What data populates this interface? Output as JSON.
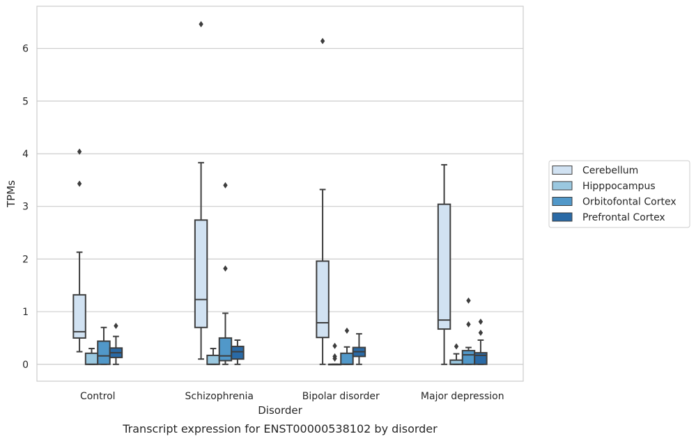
{
  "chart_data": {
    "type": "box",
    "title": "Transcript expression for ENST00000538102 by disorder",
    "xlabel": "Disorder",
    "ylabel": "TPMs",
    "ylim": [
      -0.32,
      6.8
    ],
    "yticks": [
      0,
      1,
      2,
      3,
      4,
      5,
      6
    ],
    "grid": "horizontal",
    "legend_position": "right",
    "categories": [
      "Control",
      "Schizophrenia",
      "Bipolar disorder",
      "Major depression"
    ],
    "series": [
      {
        "name": "Cerebellum",
        "color": "#d1e2f2",
        "boxes": [
          {
            "whislo": 0.24,
            "q1": 0.5,
            "med": 0.62,
            "q3": 1.32,
            "whishi": 2.13,
            "fliers": [
              3.43,
              4.04
            ]
          },
          {
            "whislo": 0.1,
            "q1": 0.7,
            "med": 1.23,
            "q3": 2.74,
            "whishi": 3.83,
            "fliers": [
              6.46
            ]
          },
          {
            "whislo": 0.0,
            "q1": 0.51,
            "med": 0.79,
            "q3": 1.96,
            "whishi": 3.32,
            "fliers": [
              6.14
            ]
          },
          {
            "whislo": 0.0,
            "q1": 0.67,
            "med": 0.84,
            "q3": 3.04,
            "whishi": 3.79,
            "fliers": []
          }
        ]
      },
      {
        "name": "Hipppocampus",
        "color": "#9ac8e0",
        "boxes": [
          {
            "whislo": 0.0,
            "q1": 0.0,
            "med": 0.0,
            "q3": 0.21,
            "whishi": 0.3,
            "fliers": []
          },
          {
            "whislo": 0.0,
            "q1": 0.0,
            "med": 0.0,
            "q3": 0.17,
            "whishi": 0.3,
            "fliers": []
          },
          {
            "whislo": 0.0,
            "q1": 0.0,
            "med": 0.0,
            "q3": 0.0,
            "whishi": 0.0,
            "fliers": [
              0.11,
              0.15,
              0.35
            ]
          },
          {
            "whislo": 0.0,
            "q1": 0.0,
            "med": 0.0,
            "q3": 0.08,
            "whishi": 0.2,
            "fliers": [
              0.34
            ]
          }
        ]
      },
      {
        "name": "Orbitofontal Cortex",
        "color": "#5198c9",
        "boxes": [
          {
            "whislo": 0.0,
            "q1": 0.0,
            "med": 0.16,
            "q3": 0.44,
            "whishi": 0.7,
            "fliers": []
          },
          {
            "whislo": 0.0,
            "q1": 0.07,
            "med": 0.16,
            "q3": 0.5,
            "whishi": 0.97,
            "fliers": [
              1.82,
              3.4
            ]
          },
          {
            "whislo": 0.0,
            "q1": 0.0,
            "med": 0.0,
            "q3": 0.21,
            "whishi": 0.33,
            "fliers": [
              0.64
            ]
          },
          {
            "whislo": 0.0,
            "q1": 0.0,
            "med": 0.18,
            "q3": 0.26,
            "whishi": 0.32,
            "fliers": [
              0.76,
              1.21
            ]
          }
        ]
      },
      {
        "name": "Prefrontal Cortex",
        "color": "#2a6aa6",
        "boxes": [
          {
            "whislo": 0.0,
            "q1": 0.13,
            "med": 0.22,
            "q3": 0.31,
            "whishi": 0.53,
            "fliers": [
              0.73
            ]
          },
          {
            "whislo": 0.0,
            "q1": 0.1,
            "med": 0.24,
            "q3": 0.34,
            "whishi": 0.46,
            "fliers": []
          },
          {
            "whislo": 0.0,
            "q1": 0.15,
            "med": 0.24,
            "q3": 0.32,
            "whishi": 0.58,
            "fliers": []
          },
          {
            "whislo": 0.0,
            "q1": 0.0,
            "med": 0.17,
            "q3": 0.22,
            "whishi": 0.46,
            "fliers": [
              0.6,
              0.81
            ]
          }
        ]
      }
    ]
  }
}
